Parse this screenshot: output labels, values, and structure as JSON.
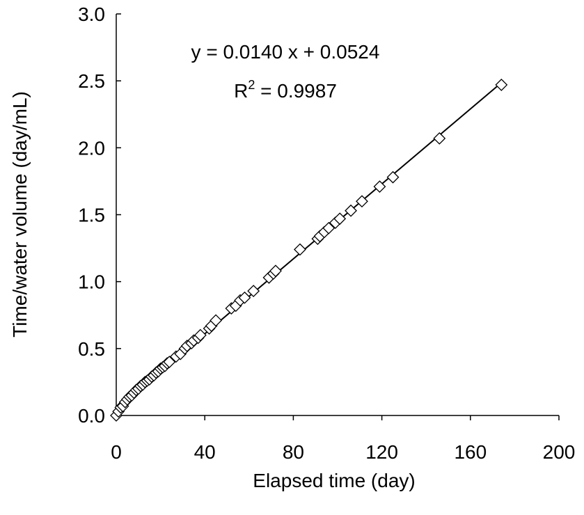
{
  "chart_data": {
    "type": "scatter",
    "x_label": "Elapsed time (day)",
    "y_label": "Time/water volume (day/mL)",
    "equation": "y = 0.0140 x + 0.0524",
    "r_squared": {
      "base": "R",
      "sup": "2",
      "rest": " = 0.9987"
    },
    "xlim": [
      0,
      200
    ],
    "xticks": [
      0,
      40,
      80,
      120,
      160,
      200
    ],
    "ylim": [
      0,
      3.0
    ],
    "yticks": [
      {
        "value": 0,
        "label": "0.0"
      },
      0.5,
      {
        "value": 1,
        "label": "1.0"
      },
      1.5,
      {
        "value": 2,
        "label": "2.0"
      },
      2.5,
      {
        "value": 3,
        "label": "3.0"
      }
    ],
    "marker_color": "#000000",
    "x": [
      0,
      1,
      2,
      3,
      4,
      5,
      6,
      7,
      8,
      9,
      10,
      11,
      12,
      13,
      14,
      15,
      16,
      17,
      18,
      19,
      20,
      21,
      22,
      23,
      24,
      27,
      29,
      31,
      32,
      34,
      35,
      37,
      38,
      42,
      43,
      45,
      52,
      54,
      56,
      58,
      62,
      69,
      71,
      72,
      83,
      91,
      92,
      94,
      96,
      99,
      101,
      106,
      111,
      119,
      125,
      146,
      174
    ],
    "values": [
      0,
      0.03,
      0.06,
      0.07,
      0.1,
      0.12,
      0.14,
      0.15,
      0.17,
      0.19,
      0.2,
      0.22,
      0.23,
      0.25,
      0.26,
      0.27,
      0.29,
      0.3,
      0.32,
      0.33,
      0.35,
      0.36,
      0.37,
      0.39,
      0.4,
      0.44,
      0.46,
      0.5,
      0.52,
      0.54,
      0.56,
      0.58,
      0.6,
      0.65,
      0.67,
      0.71,
      0.8,
      0.82,
      0.86,
      0.88,
      0.93,
      1.03,
      1.06,
      1.08,
      1.24,
      1.32,
      1.34,
      1.37,
      1.4,
      1.44,
      1.47,
      1.53,
      1.6,
      1.71,
      1.78,
      2.07,
      2.47
    ],
    "trendline": {
      "x": [
        0,
        175
      ],
      "values": [
        0.05,
        2.5
      ]
    }
  }
}
